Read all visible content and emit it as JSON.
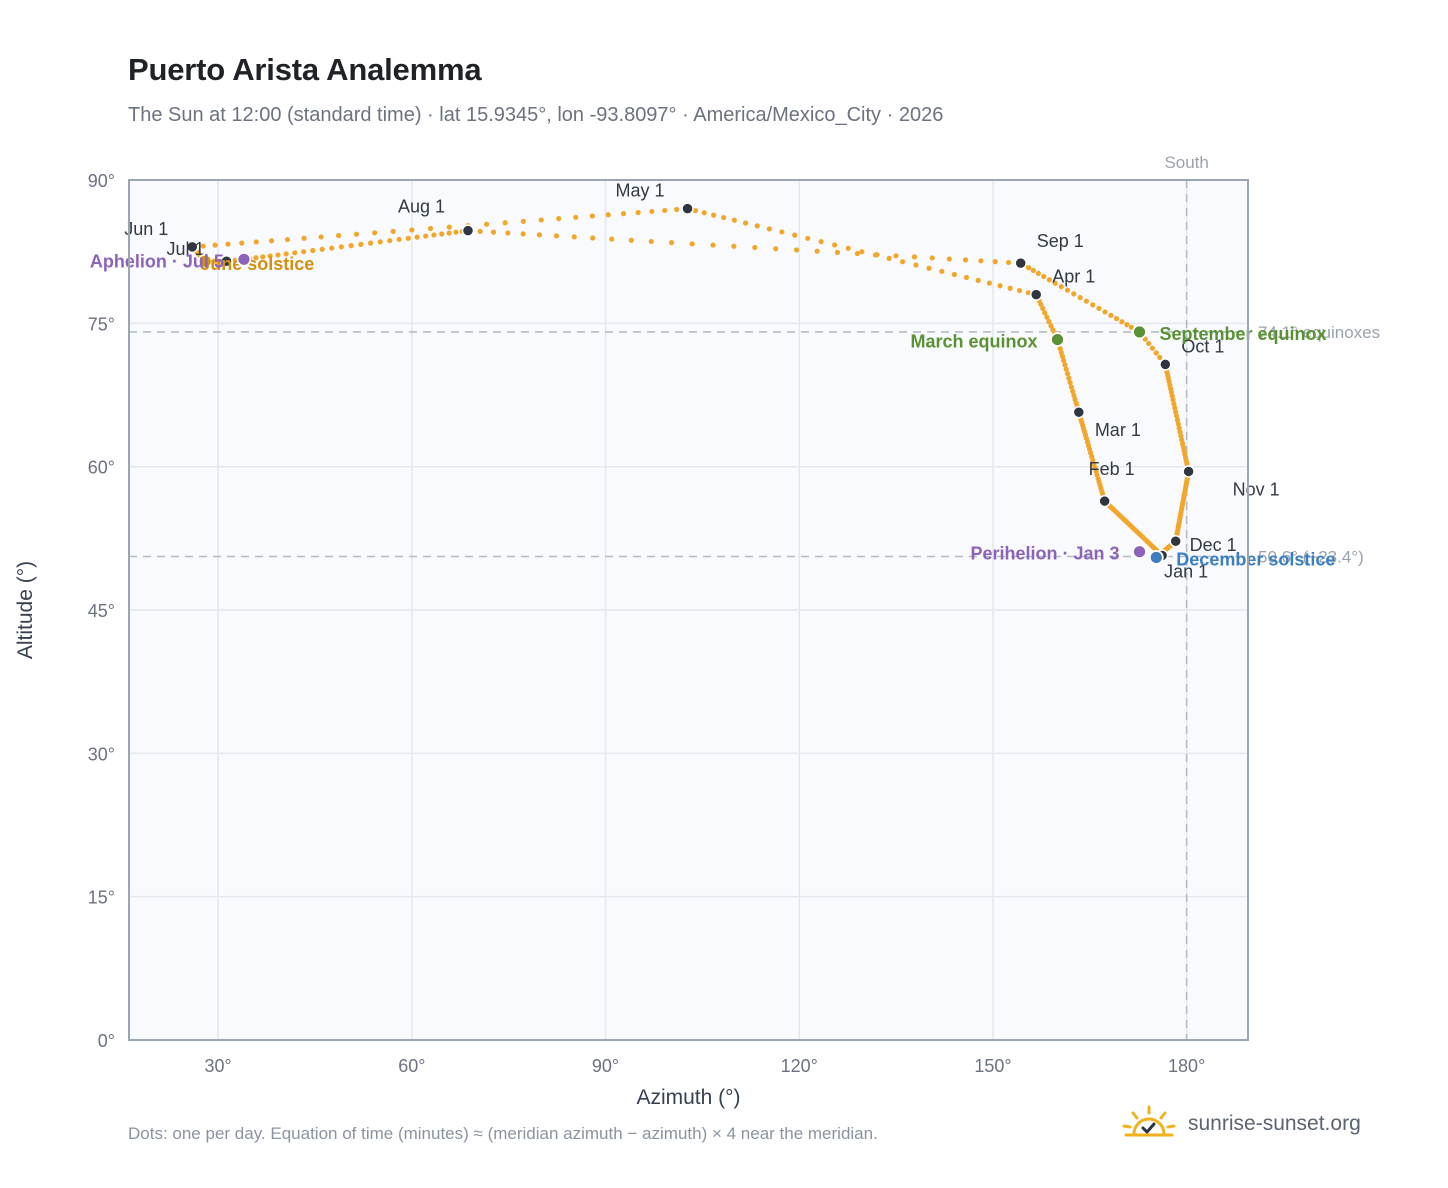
{
  "header": {
    "title": "Puerto Arista Analemma",
    "subtitle": "The Sun at 12:00 (standard time) · lat 15.9345°, lon -93.8097° · America/Mexico_City · 2026"
  },
  "footer": {
    "note": "Dots: one per day. Equation of time (minutes) ≈ (meridian azimuth − azimuth) × 4 near the meridian.",
    "brand": "sunrise-sunset.org",
    "logo": "sun-check-logo"
  },
  "colors": {
    "path": "#f2a72a",
    "month": "#2f3640",
    "equinox": "#5a9133",
    "december": "#3d7ec2",
    "june": "#d4900f",
    "orbit": "#8c63b8",
    "ref": "#b3bcc4",
    "plot_bg": "#f8fafd",
    "grid": "#e3e8ee",
    "frame": "#9ba6b2"
  },
  "chart_data": {
    "type": "scatter",
    "title": "Puerto Arista Analemma",
    "xlabel": "Azimuth (°)",
    "ylabel": "Altitude (°)",
    "xlim": [
      16.2,
      189.5
    ],
    "ylim": [
      0,
      90
    ],
    "x_ticks": [
      30,
      60,
      90,
      120,
      150,
      180
    ],
    "x_tick_labels": [
      "30°",
      "60°",
      "90°",
      "120°",
      "150°",
      "180°"
    ],
    "y_ticks": [
      0,
      15,
      30,
      45,
      60,
      75,
      90
    ],
    "y_tick_labels": [
      "0°",
      "15°",
      "30°",
      "45°",
      "60°",
      "75°",
      "90°"
    ],
    "grid": true,
    "path_keypoints": [
      {
        "doy": 0,
        "az": 176.2,
        "alt": 50.7
      },
      {
        "doy": 31,
        "az": 167.3,
        "alt": 56.4
      },
      {
        "doy": 59,
        "az": 163.3,
        "alt": 65.7
      },
      {
        "doy": 78,
        "az": 160.0,
        "alt": 73.3
      },
      {
        "doy": 90,
        "az": 156.7,
        "alt": 78.0
      },
      {
        "doy": 120,
        "az": 102.7,
        "alt": 87.0
      },
      {
        "doy": 151,
        "az": 26.0,
        "alt": 83.0
      },
      {
        "doy": 171,
        "az": 28.0,
        "alt": 81.5
      },
      {
        "doy": 181,
        "az": 31.3,
        "alt": 81.5
      },
      {
        "doy": 185,
        "az": 34.0,
        "alt": 81.7
      },
      {
        "doy": 212,
        "az": 68.7,
        "alt": 84.7
      },
      {
        "doy": 243,
        "az": 154.3,
        "alt": 81.3
      },
      {
        "doy": 265,
        "az": 172.7,
        "alt": 74.1
      },
      {
        "doy": 273,
        "az": 176.7,
        "alt": 70.7
      },
      {
        "doy": 304,
        "az": 180.3,
        "alt": 59.5
      },
      {
        "doy": 334,
        "az": 178.3,
        "alt": 52.2
      },
      {
        "doy": 354,
        "az": 175.3,
        "alt": 50.5
      },
      {
        "doy": 365,
        "az": 176.2,
        "alt": 50.7
      }
    ],
    "month_markers": [
      {
        "label": "Jan 1",
        "az": 176.2,
        "alt": 50.7
      },
      {
        "label": "Feb 1",
        "az": 167.3,
        "alt": 56.4
      },
      {
        "label": "Mar 1",
        "az": 163.3,
        "alt": 65.7
      },
      {
        "label": "Apr 1",
        "az": 156.7,
        "alt": 78.0
      },
      {
        "label": "May 1",
        "az": 102.7,
        "alt": 87.0
      },
      {
        "label": "Jun 1",
        "az": 26.0,
        "alt": 83.0
      },
      {
        "label": "Jul 1",
        "az": 31.3,
        "alt": 81.5
      },
      {
        "label": "Aug 1",
        "az": 68.7,
        "alt": 84.7
      },
      {
        "label": "Sep 1",
        "az": 154.3,
        "alt": 81.3
      },
      {
        "label": "Oct 1",
        "az": 176.7,
        "alt": 70.7
      },
      {
        "label": "Nov 1",
        "az": 180.3,
        "alt": 59.5
      },
      {
        "label": "Dec 1",
        "az": 178.3,
        "alt": 52.2
      }
    ],
    "events": [
      {
        "label": "March equinox",
        "az": 160.0,
        "alt": 73.3,
        "color": "#5a9133"
      },
      {
        "label": "September equinox",
        "az": 172.7,
        "alt": 74.1,
        "color": "#5a9133"
      },
      {
        "label": "December solstice",
        "az": 175.3,
        "alt": 50.5,
        "color": "#3d7ec2"
      },
      {
        "label": "June solstice",
        "az": 28.0,
        "alt": 81.5,
        "color": "#d4900f"
      },
      {
        "label": "Perihelion · Jan 3",
        "az": 172.7,
        "alt": 51.1,
        "color": "#8c63b8"
      },
      {
        "label": "Aphelion · Jul 5",
        "az": 34.0,
        "alt": 81.7,
        "color": "#8c63b8"
      }
    ],
    "reference_lines": [
      {
        "orientation": "horizontal",
        "value": 74.1,
        "label": "74.1° equinoxes"
      },
      {
        "orientation": "horizontal",
        "value": 50.6,
        "label": "50.6° (+23.4°)"
      },
      {
        "orientation": "vertical",
        "value": 180,
        "label": "South"
      }
    ]
  }
}
